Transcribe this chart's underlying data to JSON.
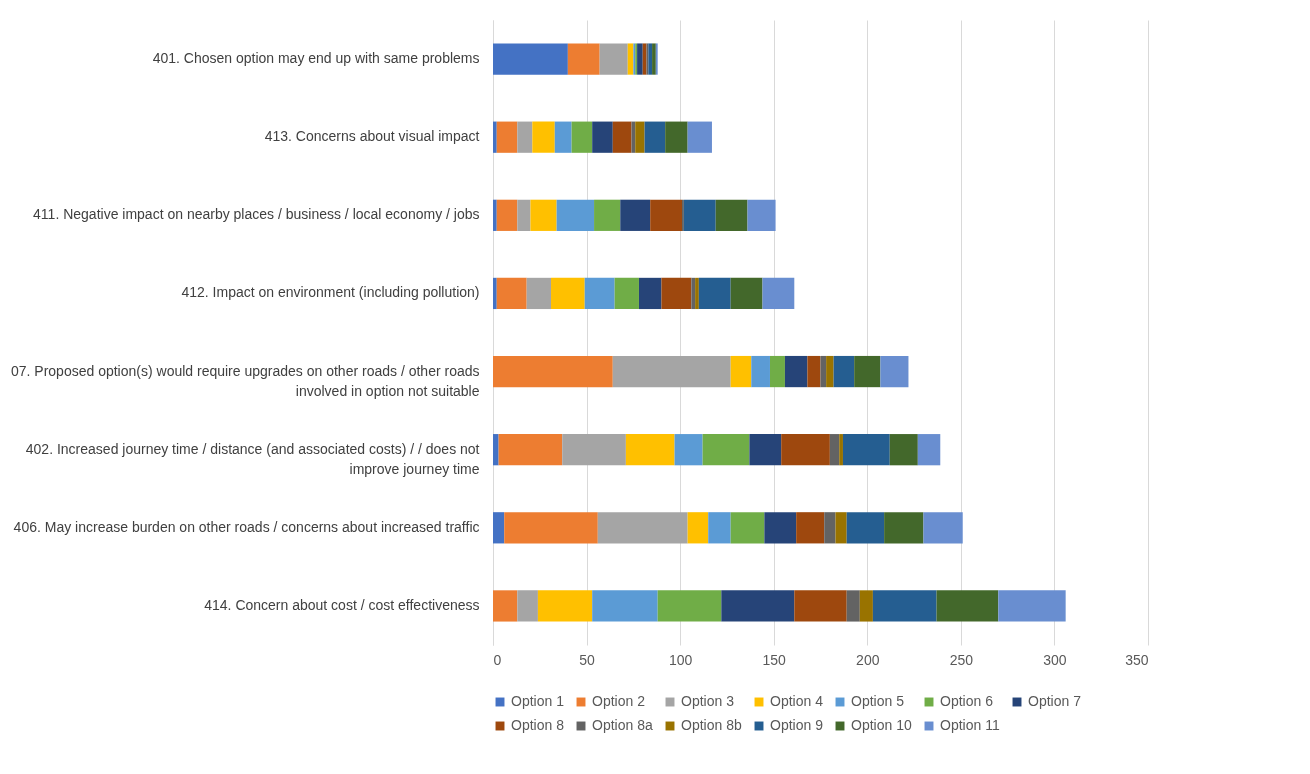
{
  "chart_data": {
    "type": "bar",
    "orientation": "horizontal",
    "stacked": true,
    "grid": "x",
    "legend": "bottom",
    "categories": [
      "401.  Chosen option may end up with same problems",
      "413. Concerns about visual impact",
      "411. Negative impact on nearby places / business / local economy / jobs",
      "412. Impact on environment (including pollution)",
      "07. Proposed option(s) would require upgrades on other roads / other roads involved in option not suitable",
      "402. Increased journey time / distance (and associated costs) / / does not improve journey time",
      "406. May increase burden on other roads / concerns about increased traffic",
      "414. Concern about cost / cost effectiveness"
    ],
    "xlim": [
      0,
      350
    ],
    "xticks": [
      0,
      50,
      100,
      150,
      200,
      250,
      300,
      350
    ],
    "series": [
      {
        "name": "Option 1",
        "color": "#4472c4",
        "values": [
          40,
          2,
          2,
          2,
          0,
          3,
          6,
          0
        ]
      },
      {
        "name": "Option 2",
        "color": "#ed7d31",
        "values": [
          17,
          11,
          11,
          16,
          64,
          34,
          50,
          13
        ]
      },
      {
        "name": "Option 3",
        "color": "#a5a5a5",
        "values": [
          15,
          8,
          7,
          13,
          63,
          34,
          48,
          11
        ]
      },
      {
        "name": "Option 4",
        "color": "#ffc000",
        "values": [
          3,
          12,
          14,
          18,
          11,
          26,
          11,
          29
        ]
      },
      {
        "name": "Option 5",
        "color": "#5b9bd5",
        "values": [
          1,
          9,
          20,
          16,
          10,
          15,
          12,
          35
        ]
      },
      {
        "name": "Option 6",
        "color": "#70ad47",
        "values": [
          1,
          11,
          14,
          13,
          8,
          25,
          18,
          34
        ]
      },
      {
        "name": "Option 7",
        "color": "#264478",
        "values": [
          3,
          11,
          16,
          12,
          12,
          17,
          17,
          39
        ]
      },
      {
        "name": "Option 8",
        "color": "#9e480e",
        "values": [
          2,
          10,
          17,
          16,
          7,
          26,
          15,
          28
        ]
      },
      {
        "name": "Option 8a",
        "color": "#636363",
        "values": [
          1,
          2,
          1,
          2,
          3,
          5,
          6,
          7
        ]
      },
      {
        "name": "Option 8b",
        "color": "#997300",
        "values": [
          0,
          5,
          0,
          2,
          4,
          2,
          6,
          7
        ]
      },
      {
        "name": "Option 9",
        "color": "#255e91",
        "values": [
          2,
          11,
          17,
          17,
          11,
          25,
          20,
          34
        ]
      },
      {
        "name": "Option 10",
        "color": "#43682b",
        "values": [
          2,
          12,
          17,
          17,
          14,
          15,
          21,
          33
        ]
      },
      {
        "name": "Option 11",
        "color": "#698ed0",
        "values": [
          1,
          13,
          15,
          17,
          15,
          12,
          21,
          36
        ]
      }
    ]
  }
}
